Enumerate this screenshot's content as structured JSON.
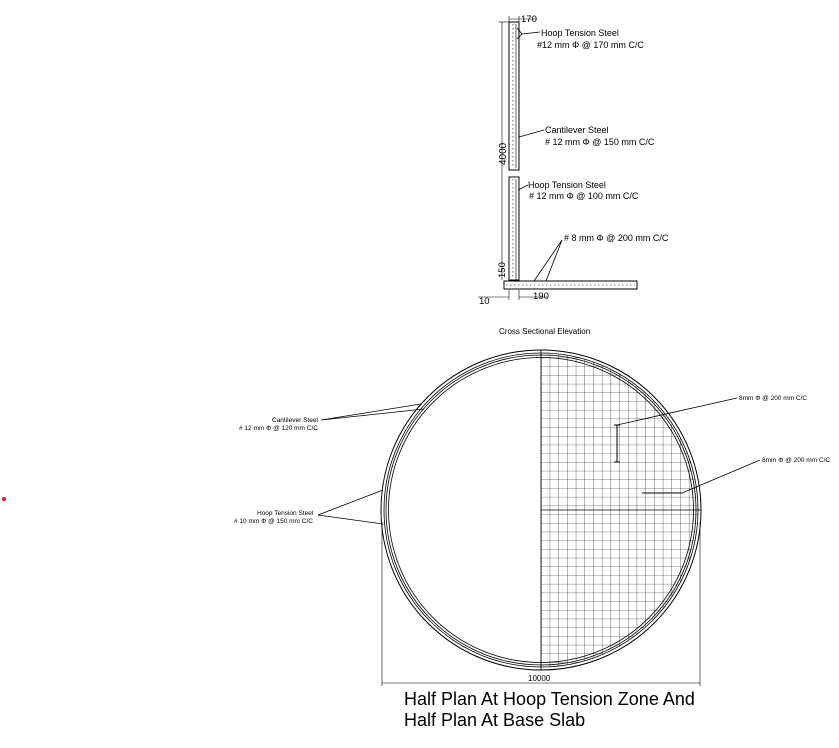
{
  "elevation": {
    "title": "Cross Sectional Elevation",
    "dims": {
      "top_thickness": "170",
      "height": "4000",
      "base": "150",
      "cover": "10",
      "bottom_width": "190"
    },
    "notes": [
      {
        "line1": "Hoop Tension Steel",
        "line2": "#12 mm Φ @ 170 mm C/C"
      },
      {
        "line1": "Cantilever Steel",
        "line2": "# 12 mm Φ @ 150 mm C/C"
      },
      {
        "line1": "Hoop Tension Steel",
        "line2": "# 12 mm Φ @ 100 mm C/C"
      },
      {
        "line1": "# 8 mm Φ @ 200 mm C/C",
        "line2": ""
      }
    ]
  },
  "plan": {
    "title_line1": "Half Plan At Hoop Tension Zone And",
    "title_line2": "Half Plan At Base Slab",
    "diameter": "10000",
    "notes": [
      {
        "line1": "Cantilever Steel",
        "line2": "# 12 mm Φ @ 120 mm C/C"
      },
      {
        "line1": "Hoop Tension Steel",
        "line2": "# 10 mm Φ @ 150 mm C/C"
      },
      {
        "line1": "8mm Φ @ 200 mm C/C",
        "line2": ""
      },
      {
        "line1": "8mm  Φ @ 200 mm C/C",
        "line2": ""
      }
    ]
  },
  "colors": {
    "ink": "#000000",
    "marker": "#e8123c"
  }
}
